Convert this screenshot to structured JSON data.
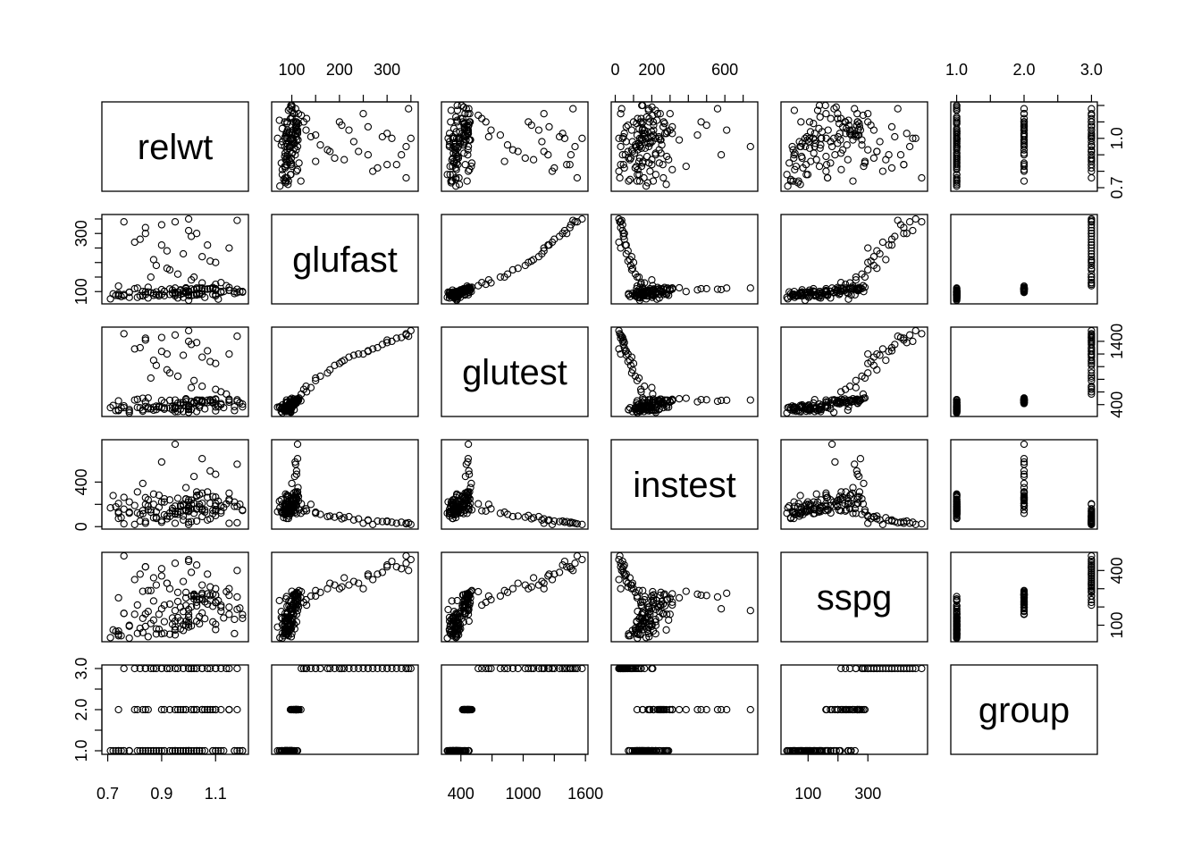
{
  "chart_data": {
    "type": "scatter",
    "variables": [
      {
        "name": "relwt",
        "range": [
          0.7,
          1.2
        ],
        "ticks": [
          0.7,
          0.9,
          1.1
        ],
        "tick_labels": [
          "0.7",
          "0.9",
          "1.1"
        ],
        "right_ticks": [
          0.7,
          0.8,
          0.9,
          1.0,
          1.1,
          1.2
        ],
        "right_labels": [
          "0.7",
          "1.0"
        ],
        "axis_side": "bottom"
      },
      {
        "name": "glufast",
        "range": [
          70,
          353
        ],
        "ticks": [
          100,
          150,
          200,
          250,
          300,
          350
        ],
        "tick_labels": [
          "100",
          "200",
          "300"
        ],
        "axis_side": "top",
        "left_ticks": [
          100,
          150,
          200,
          250,
          300,
          350
        ],
        "left_labels": [
          "100",
          "300"
        ]
      },
      {
        "name": "glutest",
        "range": [
          269,
          1568
        ],
        "ticks": [
          400,
          700,
          1000,
          1300,
          1600
        ],
        "tick_labels": [
          "400",
          "1000",
          "1600"
        ],
        "axis_side": "bottom",
        "right_ticks": [
          400,
          600,
          800,
          1000,
          1200,
          1400
        ],
        "right_labels": [
          "400",
          "1400"
        ]
      },
      {
        "name": "instest",
        "range": [
          10,
          748
        ],
        "ticks": [
          0,
          100,
          200,
          300,
          400,
          500,
          600,
          700
        ],
        "tick_labels": [
          "0",
          "200",
          "600"
        ],
        "axis_side": "top",
        "left_ticks": [
          0,
          200,
          400
        ],
        "left_labels": [
          "0",
          "400"
        ]
      },
      {
        "name": "sspg",
        "range": [
          29,
          480
        ],
        "ticks": [
          100,
          200,
          300
        ],
        "tick_labels": [
          "100",
          "300"
        ],
        "axis_side": "bottom",
        "right_ticks": [
          100,
          200,
          300,
          400
        ],
        "right_labels": [
          "100",
          "400"
        ]
      },
      {
        "name": "group",
        "range": [
          1.0,
          3.0
        ],
        "ticks": [
          1.0,
          1.5,
          2.0,
          2.5,
          3.0
        ],
        "tick_labels": [
          "1.0",
          "2.0",
          "3.0"
        ],
        "axis_side": "top",
        "left_ticks": [
          1.0,
          1.5,
          2.0,
          2.5,
          3.0
        ],
        "left_labels": [
          "1.0",
          "2.0",
          "3.0"
        ]
      }
    ],
    "observations": [
      [
        0.81,
        80,
        356,
        124,
        55,
        1
      ],
      [
        0.95,
        97,
        289,
        117,
        76,
        1
      ],
      [
        0.94,
        105,
        319,
        143,
        105,
        1
      ],
      [
        1.04,
        90,
        356,
        199,
        108,
        1
      ],
      [
        1.0,
        90,
        323,
        240,
        143,
        1
      ],
      [
        0.76,
        86,
        381,
        157,
        165,
        1
      ],
      [
        0.91,
        100,
        350,
        221,
        119,
        1
      ],
      [
        1.1,
        85,
        301,
        186,
        105,
        1
      ],
      [
        0.99,
        97,
        379,
        142,
        98,
        1
      ],
      [
        0.78,
        97,
        296,
        131,
        94,
        1
      ],
      [
        0.9,
        91,
        353,
        221,
        53,
        1
      ],
      [
        0.73,
        87,
        306,
        178,
        66,
        1
      ],
      [
        0.96,
        78,
        290,
        136,
        142,
        1
      ],
      [
        0.84,
        90,
        371,
        200,
        93,
        1
      ],
      [
        0.74,
        86,
        312,
        208,
        68,
        1
      ],
      [
        0.98,
        80,
        393,
        202,
        102,
        1
      ],
      [
        1.1,
        90,
        364,
        152,
        76,
        1
      ],
      [
        0.85,
        99,
        359,
        185,
        37,
        1
      ],
      [
        0.83,
        85,
        296,
        116,
        60,
        1
      ],
      [
        0.93,
        90,
        345,
        123,
        50,
        1
      ],
      [
        0.95,
        90,
        378,
        136,
        47,
        1
      ],
      [
        0.74,
        88,
        304,
        134,
        50,
        1
      ],
      [
        0.95,
        95,
        347,
        184,
        91,
        1
      ],
      [
        0.97,
        90,
        327,
        192,
        124,
        1
      ],
      [
        0.72,
        92,
        386,
        279,
        74,
        1
      ],
      [
        1.11,
        74,
        365,
        228,
        235,
        1
      ],
      [
        1.2,
        98,
        365,
        145,
        158,
        1
      ],
      [
        1.13,
        100,
        352,
        172,
        140,
        1
      ],
      [
        1.0,
        86,
        325,
        179,
        145,
        1
      ],
      [
        0.78,
        98,
        321,
        222,
        99,
        1
      ],
      [
        1.0,
        70,
        360,
        134,
        90,
        1
      ],
      [
        1.0,
        99,
        336,
        143,
        105,
        1
      ],
      [
        0.71,
        75,
        352,
        169,
        32,
        1
      ],
      [
        0.76,
        90,
        353,
        263,
        165,
        1
      ],
      [
        0.89,
        85,
        373,
        174,
        78,
        1
      ],
      [
        0.88,
        99,
        376,
        134,
        80,
        1
      ],
      [
        1.17,
        100,
        367,
        182,
        54,
        1
      ],
      [
        0.85,
        78,
        335,
        241,
        175,
        1
      ],
      [
        0.97,
        106,
        396,
        128,
        80,
        1
      ],
      [
        1.0,
        98,
        277,
        222,
        186,
        1
      ],
      [
        1.0,
        102,
        378,
        165,
        117,
        1
      ],
      [
        0.89,
        90,
        360,
        282,
        160,
        1
      ],
      [
        0.98,
        94,
        291,
        94,
        71,
        1
      ],
      [
        0.78,
        80,
        269,
        121,
        29,
        1
      ],
      [
        0.74,
        93,
        318,
        73,
        42,
        1
      ],
      [
        0.91,
        86,
        328,
        106,
        56,
        1
      ],
      [
        0.95,
        85,
        334,
        118,
        122,
        1
      ],
      [
        0.95,
        96,
        356,
        112,
        73,
        1
      ],
      [
        1.03,
        88,
        291,
        157,
        122,
        1
      ],
      [
        0.87,
        87,
        360,
        292,
        128,
        1
      ],
      [
        0.87,
        94,
        313,
        200,
        233,
        1
      ],
      [
        1.17,
        93,
        306,
        220,
        132,
        1
      ],
      [
        0.83,
        86,
        319,
        144,
        138,
        1
      ],
      [
        0.82,
        86,
        349,
        109,
        83,
        1
      ],
      [
        0.86,
        96,
        332,
        151,
        109,
        1
      ],
      [
        1.01,
        86,
        323,
        158,
        96,
        1
      ],
      [
        0.88,
        89,
        323,
        73,
        52,
        1
      ],
      [
        0.75,
        83,
        351,
        81,
        42,
        1
      ],
      [
        0.99,
        98,
        478,
        151,
        122,
        1
      ],
      [
        1.12,
        100,
        398,
        122,
        176,
        1
      ],
      [
        1.09,
        110,
        426,
        117,
        118,
        1
      ],
      [
        1.02,
        88,
        439,
        208,
        244,
        1
      ],
      [
        1.19,
        100,
        429,
        201,
        194,
        1
      ],
      [
        1.06,
        80,
        333,
        131,
        136,
        1
      ],
      [
        1.03,
        89,
        472,
        162,
        257,
        1
      ],
      [
        1.05,
        91,
        436,
        148,
        167,
        1
      ],
      [
        1.2,
        100,
        408,
        150,
        138,
        1
      ],
      [
        1.04,
        112,
        470,
        286,
        242,
        1
      ],
      [
        1.04,
        95,
        390,
        177,
        147,
        1
      ],
      [
        1.0,
        102,
        392,
        180,
        161,
        1
      ],
      [
        1.09,
        90,
        437,
        146,
        204,
        1
      ],
      [
        1.03,
        94,
        413,
        272,
        206,
        1
      ],
      [
        0.99,
        103,
        449,
        247,
        208,
        1
      ],
      [
        1.18,
        96,
        476,
        182,
        187,
        1
      ],
      [
        0.94,
        95,
        369,
        164,
        140,
        1
      ],
      [
        1.12,
        97,
        417,
        186,
        199,
        2
      ],
      [
        1.1,
        104,
        489,
        208,
        223,
        2
      ],
      [
        1.01,
        109,
        450,
        239,
        200,
        2
      ],
      [
        1.03,
        112,
        462,
        312,
        226,
        2
      ],
      [
        0.84,
        99,
        442,
        260,
        162,
        2
      ],
      [
        0.83,
        100,
        500,
        388,
        286,
        2
      ],
      [
        1.07,
        109,
        433,
        262,
        216,
        2
      ],
      [
        1.15,
        114,
        468,
        232,
        199,
        2
      ],
      [
        1.05,
        110,
        452,
        300,
        248,
        2
      ],
      [
        1.02,
        106,
        425,
        210,
        266,
        2
      ],
      [
        1.06,
        108,
        436,
        150,
        228,
        2
      ],
      [
        0.81,
        112,
        483,
        312,
        211,
        2
      ],
      [
        0.8,
        110,
        472,
        190,
        160,
        2
      ],
      [
        0.93,
        109,
        468,
        240,
        216,
        2
      ],
      [
        1.15,
        105,
        485,
        246,
        264,
        2
      ],
      [
        1.1,
        108,
        418,
        265,
        266,
        2
      ],
      [
        1.09,
        114,
        472,
        270,
        271,
        2
      ],
      [
        0.96,
        98,
        424,
        255,
        230,
        2
      ],
      [
        0.98,
        101,
        430,
        190,
        175,
        2
      ],
      [
        0.99,
        110,
        486,
        250,
        280,
        2
      ],
      [
        1.03,
        108,
        469,
        280,
        240,
        2
      ],
      [
        1.05,
        103,
        458,
        210,
        267,
        2
      ],
      [
        0.97,
        104,
        432,
        180,
        199,
        2
      ],
      [
        0.99,
        113,
        492,
        350,
        250,
        2
      ],
      [
        0.91,
        101,
        430,
        250,
        210,
        2
      ],
      [
        1.07,
        108,
        470,
        312,
        272,
        2
      ],
      [
        1.08,
        109,
        460,
        210,
        236,
        2
      ],
      [
        0.95,
        112,
        472,
        740,
        180,
        2
      ],
      [
        0.9,
        107,
        466,
        580,
        190,
        2
      ],
      [
        1.02,
        106,
        444,
        450,
        270,
        2
      ],
      [
        1.05,
        112,
        470,
        610,
        275,
        2
      ],
      [
        1.1,
        110,
        480,
        470,
        265,
        2
      ],
      [
        1.18,
        108,
        452,
        560,
        255,
        2
      ],
      [
        1.08,
        110,
        476,
        500,
        263,
        2
      ],
      [
        1.15,
        104,
        440,
        300,
        160,
        2
      ],
      [
        0.74,
        119,
        460,
        120,
        250,
        2
      ],
      [
        0.85,
        115,
        505,
        150,
        290,
        2
      ],
      [
        1.14,
        120,
        567,
        205,
        284,
        3
      ],
      [
        1.1,
        200,
        1050,
        100,
        300,
        3
      ],
      [
        1.01,
        140,
        668,
        200,
        260,
        3
      ],
      [
        1.12,
        131,
        602,
        142,
        210,
        3
      ],
      [
        1.05,
        220,
        1150,
        90,
        320,
        3
      ],
      [
        0.92,
        240,
        1200,
        70,
        330,
        3
      ],
      [
        0.82,
        280,
        1300,
        50,
        380,
        3
      ],
      [
        0.84,
        300,
        1420,
        45,
        420,
        3
      ],
      [
        0.9,
        330,
        1460,
        40,
        410,
        3
      ],
      [
        0.95,
        340,
        1500,
        30,
        440,
        3
      ],
      [
        1.0,
        350,
        1568,
        20,
        460,
        3
      ],
      [
        1.03,
        300,
        1380,
        50,
        430,
        3
      ],
      [
        1.07,
        260,
        1250,
        60,
        380,
        3
      ],
      [
        1.15,
        250,
        1200,
        30,
        300,
        3
      ],
      [
        1.18,
        345,
        1480,
        35,
        400,
        3
      ],
      [
        0.87,
        210,
        1100,
        80,
        360,
        3
      ],
      [
        0.92,
        180,
        950,
        95,
        330,
        3
      ],
      [
        0.96,
        160,
        850,
        110,
        280,
        3
      ],
      [
        1.02,
        150,
        780,
        120,
        260,
        3
      ],
      [
        1.05,
        130,
        690,
        160,
        240,
        3
      ],
      [
        0.8,
        270,
        1280,
        20,
        350,
        3
      ],
      [
        0.88,
        190,
        1020,
        85,
        320,
        3
      ],
      [
        1.0,
        310,
        1400,
        40,
        450,
        3
      ],
      [
        0.98,
        230,
        1180,
        60,
        340,
        3
      ],
      [
        1.1,
        125,
        640,
        140,
        225,
        3
      ],
      [
        0.76,
        340,
        1520,
        25,
        480,
        3
      ],
      [
        0.93,
        175,
        900,
        90,
        300,
        3
      ],
      [
        0.86,
        150,
        820,
        130,
        290,
        3
      ],
      [
        0.9,
        260,
        1240,
        55,
        370,
        3
      ],
      [
        0.84,
        320,
        1450,
        30,
        420,
        3
      ],
      [
        1.01,
        290,
        1350,
        45,
        390,
        3
      ],
      [
        1.08,
        205,
        1080,
        70,
        310,
        3
      ]
    ]
  }
}
